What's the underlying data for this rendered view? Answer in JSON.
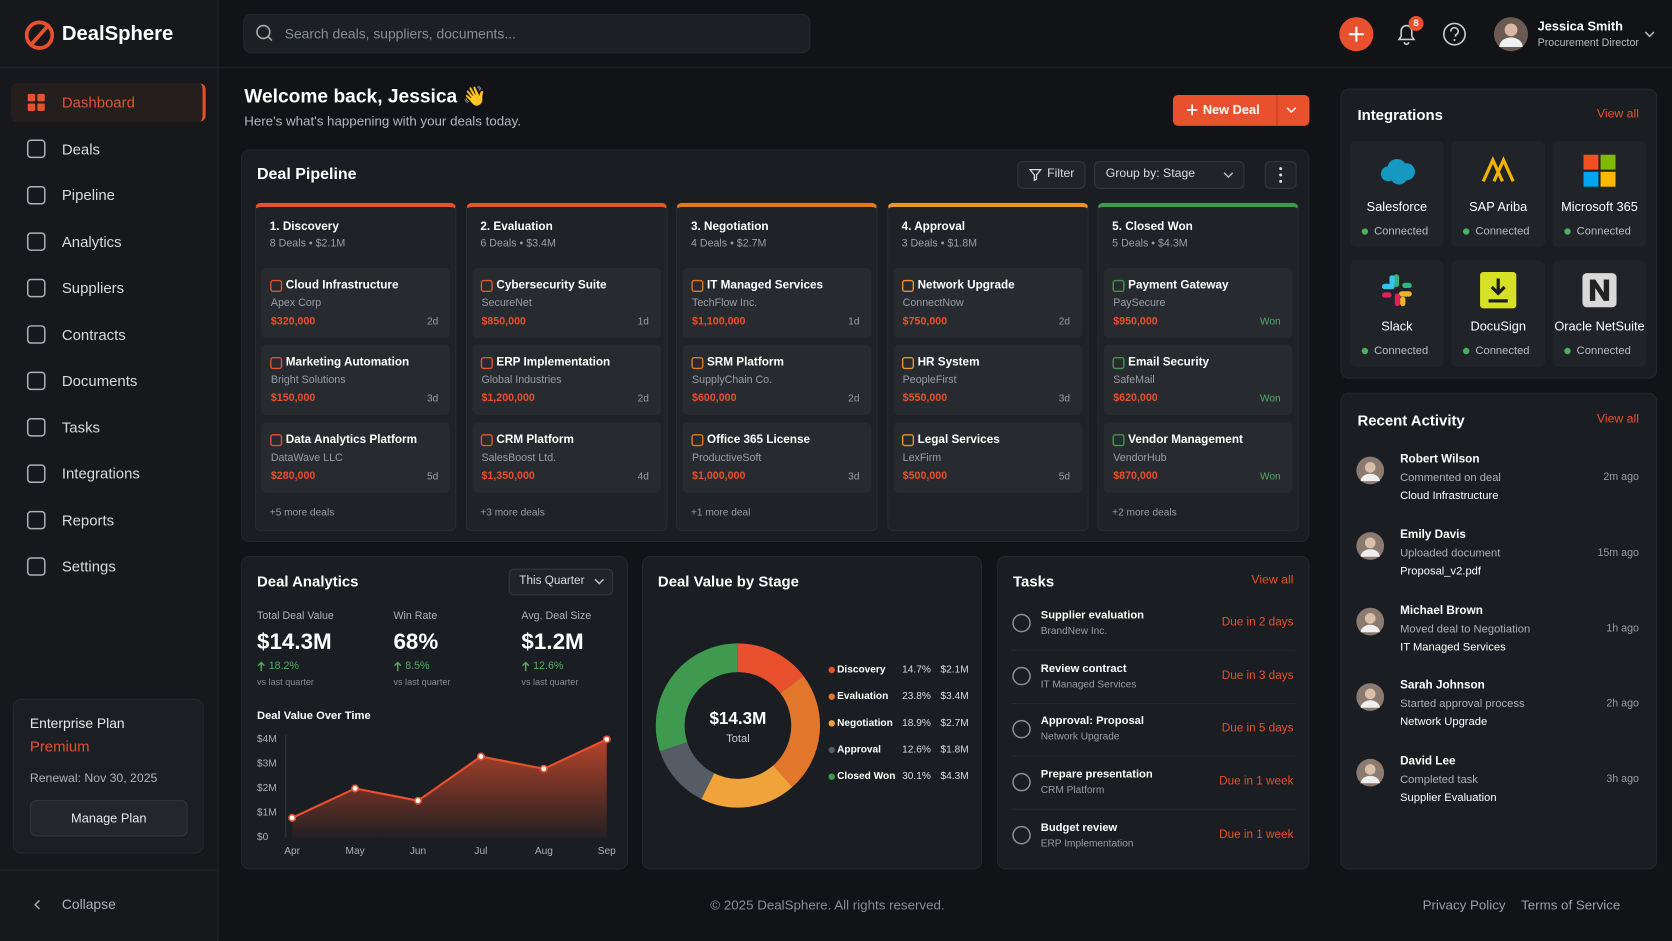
{
  "brand": "DealSphere",
  "search_placeholder": "Search deals, suppliers, documents...",
  "notifications": "8",
  "user": {
    "name": "Jessica Smith",
    "role": "Procurement Director"
  },
  "nav": [
    "Dashboard",
    "Deals",
    "Pipeline",
    "Analytics",
    "Suppliers",
    "Contracts",
    "Documents",
    "Tasks",
    "Integrations",
    "Reports",
    "Settings"
  ],
  "plan": {
    "title": "Enterprise Plan",
    "tier": "Premium",
    "renewal": "Renewal: Nov 30, 2025",
    "button": "Manage Plan"
  },
  "collapse": "Collapse",
  "welcome": {
    "title": "Welcome back, Jessica 👋",
    "subtitle": "Here's what's happening with your deals today.",
    "button": "New Deal"
  },
  "pipeline": {
    "title": "Deal Pipeline",
    "filter": "Filter",
    "group_by": "Group by: Stage",
    "stages": [
      {
        "name": "1. Discovery",
        "summary": "8 Deals • $2.1M",
        "color": "#e8502e",
        "age_color": "#9a9ea6",
        "more": "+5 more deals",
        "deals": [
          {
            "title": "Cloud Infrastructure",
            "company": "Apex Corp",
            "value": "$320,000",
            "age": "2d"
          },
          {
            "title": "Marketing Automation",
            "company": "Bright Solutions",
            "value": "$150,000",
            "age": "3d"
          },
          {
            "title": "Data Analytics Platform",
            "company": "DataWave LLC",
            "value": "$280,000",
            "age": "5d"
          }
        ]
      },
      {
        "name": "2. Evaluation",
        "summary": "6 Deals • $3.4M",
        "color": "#e4582c",
        "age_color": "#9a9ea6",
        "more": "+3 more deals",
        "deals": [
          {
            "title": "Cybersecurity Suite",
            "company": "SecureNet",
            "value": "$850,000",
            "age": "1d"
          },
          {
            "title": "ERP Implementation",
            "company": "Global Industries",
            "value": "$1,200,000",
            "age": "2d"
          },
          {
            "title": "CRM Platform",
            "company": "SalesBoost Ltd.",
            "value": "$1,350,000",
            "age": "4d"
          }
        ]
      },
      {
        "name": "3. Negotiation",
        "summary": "4 Deals • $2.7M",
        "color": "#e07a20",
        "age_color": "#9a9ea6",
        "more": "+1 more deal",
        "deals": [
          {
            "title": "IT Managed Services",
            "company": "TechFlow Inc.",
            "value": "$1,100,000",
            "age": "1d"
          },
          {
            "title": "SRM Platform",
            "company": "SupplyChain Co.",
            "value": "$600,000",
            "age": "2d"
          },
          {
            "title": "Office 365 License",
            "company": "ProductiveSoft",
            "value": "$1,000,000",
            "age": "3d"
          }
        ]
      },
      {
        "name": "4. Approval",
        "summary": "3 Deals • $1.8M",
        "color": "#e8962a",
        "age_color": "#9a9ea6",
        "deals": [
          {
            "title": "Network Upgrade",
            "company": "ConnectNow",
            "value": "$750,000",
            "age": "2d"
          },
          {
            "title": "HR System",
            "company": "PeopleFirst",
            "value": "$550,000",
            "age": "3d"
          },
          {
            "title": "Legal Services",
            "company": "LexFirm",
            "value": "$500,000",
            "age": "5d"
          }
        ]
      },
      {
        "name": "5. Closed Won",
        "summary": "5 Deals • $4.3M",
        "color": "#3f9a4f",
        "age_color": "#4caf62",
        "more": "+2 more deals",
        "deals": [
          {
            "title": "Payment Gateway",
            "company": "PaySecure",
            "value": "$950,000",
            "age": "Won"
          },
          {
            "title": "Email Security",
            "company": "SafeMail",
            "value": "$620,000",
            "age": "Won"
          },
          {
            "title": "Vendor Management",
            "company": "VendorHub",
            "value": "$870,000",
            "age": "Won"
          }
        ]
      }
    ]
  },
  "analytics": {
    "title": "Deal Analytics",
    "period": "This Quarter",
    "kpis": [
      {
        "label": "Total Deal Value",
        "value": "$14.3M",
        "change": "18.2%",
        "note": "vs last quarter"
      },
      {
        "label": "Win Rate",
        "value": "68%",
        "change": "8.5%",
        "note": "vs last quarter"
      },
      {
        "label": "Avg. Deal Size",
        "value": "$1.2M",
        "change": "12.6%",
        "note": "vs last quarter"
      }
    ]
  },
  "chart_data": [
    {
      "type": "line",
      "title": "Deal Value Over Time",
      "categories": [
        "Apr",
        "May",
        "Jun",
        "Jul",
        "Aug",
        "Sep"
      ],
      "values": [
        0.8,
        2.0,
        1.5,
        3.3,
        2.8,
        4.0
      ],
      "color": "#e8502e",
      "ylim": [
        0,
        4
      ],
      "yticks": [
        {
          "value": 0,
          "label": "$0"
        },
        {
          "value": 1,
          "label": "$1M"
        },
        {
          "value": 2,
          "label": "$2M"
        },
        {
          "value": 3,
          "label": "$3M"
        },
        {
          "value": 4,
          "label": "$4M"
        }
      ]
    },
    {
      "type": "pie",
      "title": "Deal Value by Stage",
      "center_value": "$14.3M",
      "center_label": "Total",
      "categories": [
        "Discovery",
        "Evaluation",
        "Negotiation",
        "Approval",
        "Closed Won"
      ],
      "values": [
        14.7,
        23.8,
        18.9,
        12.6,
        30.1
      ],
      "value_labels": [
        "14.7%",
        "23.8%",
        "18.9%",
        "12.6%",
        "30.1%"
      ],
      "amount_labels": [
        "$2.1M",
        "$3.4M",
        "$2.7M",
        "$1.8M",
        "$4.3M"
      ],
      "colors": [
        "#e8502e",
        "#e2762a",
        "#f0a33a",
        "#565c66",
        "#3f9a4f"
      ]
    }
  ],
  "tasks": {
    "title": "Tasks",
    "view_all": "View all",
    "items": [
      {
        "title": "Supplier evaluation",
        "subtitle": "BrandNew Inc.",
        "due": "Due in 2 days"
      },
      {
        "title": "Review contract",
        "subtitle": "IT Managed Services",
        "due": "Due in 3 days"
      },
      {
        "title": "Approval: Proposal",
        "subtitle": "Network Upgrade",
        "due": "Due in 5 days"
      },
      {
        "title": "Prepare presentation",
        "subtitle": "CRM Platform",
        "due": "Due in 1 week"
      },
      {
        "title": "Budget review",
        "subtitle": "ERP Implementation",
        "due": "Due in 1 week"
      }
    ]
  },
  "integrations": {
    "title": "Integrations",
    "view_all": "View all",
    "items": [
      {
        "name": "Salesforce",
        "status": "Connected"
      },
      {
        "name": "SAP Ariba",
        "status": "Connected"
      },
      {
        "name": "Microsoft 365",
        "status": "Connected"
      },
      {
        "name": "Slack",
        "status": "Connected"
      },
      {
        "name": "DocuSign",
        "status": "Connected"
      },
      {
        "name": "Oracle NetSuite",
        "status": "Connected"
      }
    ]
  },
  "activity": {
    "title": "Recent Activity",
    "view_all": "View all",
    "items": [
      {
        "name": "Robert Wilson",
        "action": "Commented on deal",
        "target": "Cloud Infrastructure",
        "time": "2m ago"
      },
      {
        "name": "Emily Davis",
        "action": "Uploaded document",
        "target": "Proposal_v2.pdf",
        "time": "15m ago"
      },
      {
        "name": "Michael Brown",
        "action": "Moved deal to Negotiation",
        "target": "IT Managed Services",
        "time": "1h ago"
      },
      {
        "name": "Sarah Johnson",
        "action": "Started approval process",
        "target": "Network Upgrade",
        "time": "2h ago"
      },
      {
        "name": "David Lee",
        "action": "Completed task",
        "target": "Supplier Evaluation",
        "time": "3h ago"
      }
    ]
  },
  "footer": {
    "copyright": "© 2025 DealSphere. All rights reserved.",
    "links": [
      "Privacy Policy",
      "Terms of Service"
    ]
  }
}
